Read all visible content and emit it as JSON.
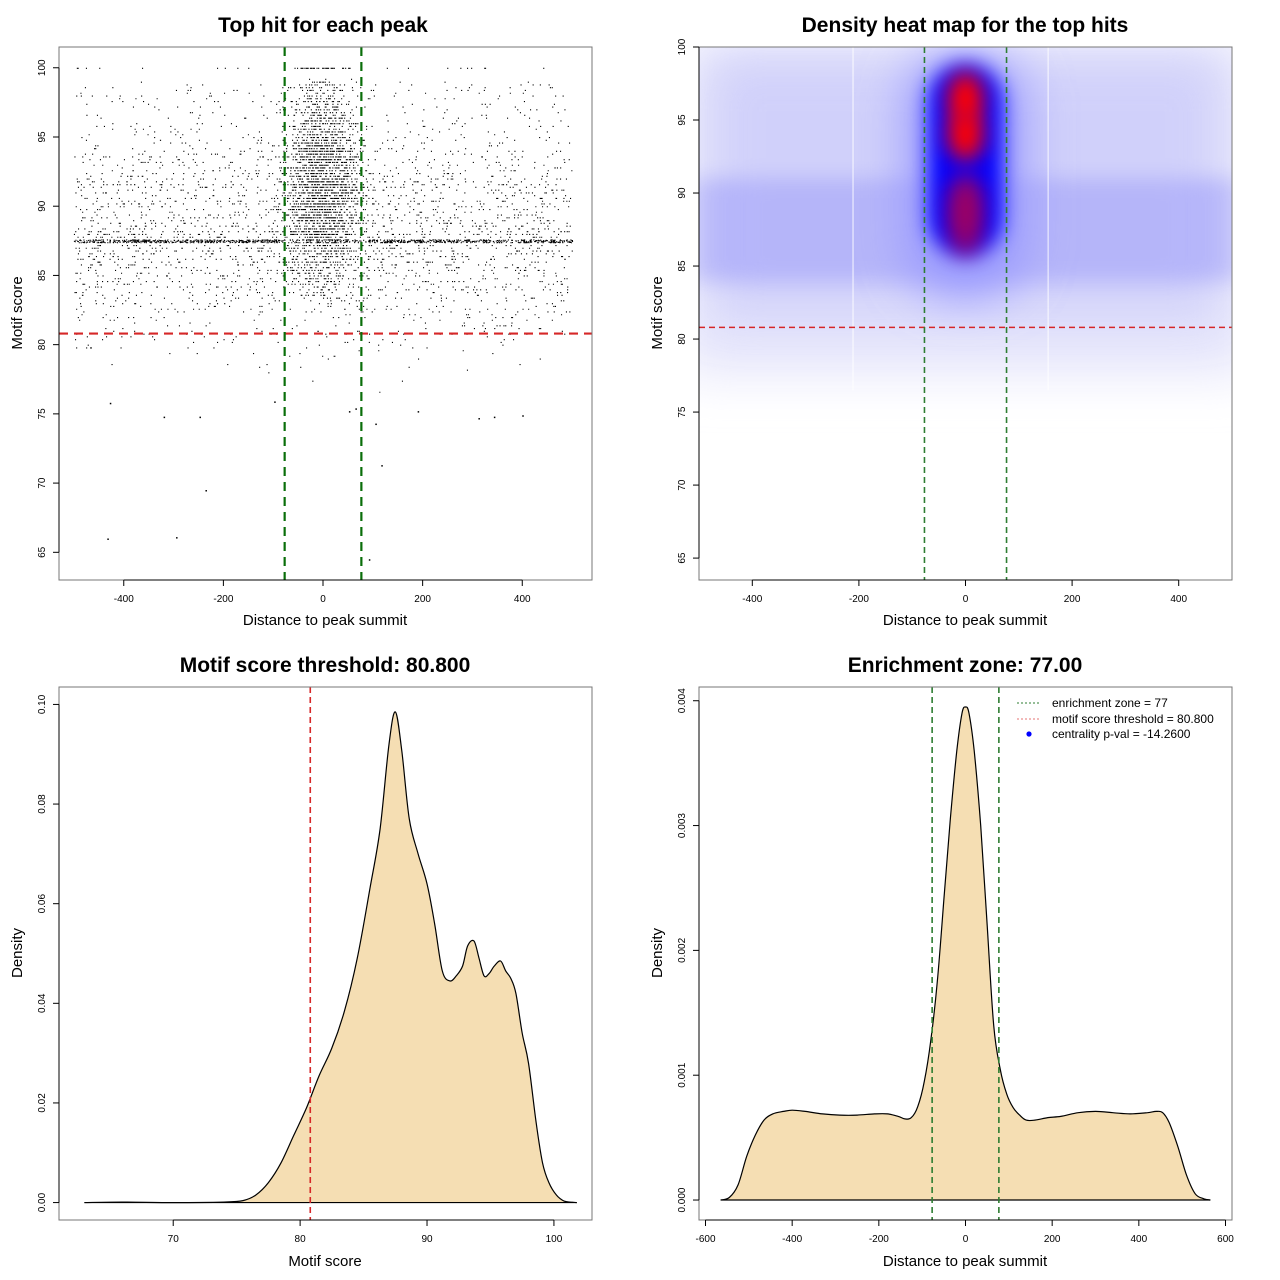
{
  "colors": {
    "points": "#000000",
    "threshold_line": "#d62728",
    "zone_line": "#0a6e0a",
    "zone_line_light": "#2e7d32",
    "density_fill": "#f5deb3",
    "density_stroke": "#000000",
    "heat_low": "#ffffff",
    "heat_mid": "#0000ff",
    "heat_high": "#ff0000",
    "legend_dot": "#0000ff",
    "frame": "#777777"
  },
  "chart_data": [
    {
      "id": "scatter",
      "type": "scatter",
      "title": "Top hit for each peak",
      "xlabel": "Distance to peak summit",
      "ylabel": "Motif score",
      "xlim": [
        -530,
        540
      ],
      "ylim": [
        63,
        101.5
      ],
      "xticks": [
        -400,
        -200,
        0,
        200,
        400
      ],
      "xtick_labels": [
        "-400",
        "-200",
        "0",
        "200",
        "400"
      ],
      "yticks": [
        65,
        70,
        75,
        80,
        85,
        90,
        95,
        100
      ],
      "ytick_labels": [
        "65",
        "70",
        "75",
        "80",
        "85",
        "90",
        "95",
        "100"
      ],
      "x_range_of_points": [
        -500,
        500
      ],
      "point_density_description": "dense uniform band of points from -500 to 500 between scores ~80 and 100, strong central enrichment near 0, horizontal line of points at ~87.5",
      "sparse_outliers": [
        {
          "x": -433,
          "y": 66.0
        },
        {
          "x": -295,
          "y": 66.1
        },
        {
          "x": -236,
          "y": 69.5
        },
        {
          "x": 92,
          "y": 64.5
        },
        {
          "x": 117,
          "y": 71.3
        },
        {
          "x": 105,
          "y": 74.3
        },
        {
          "x": -428,
          "y": 75.8
        },
        {
          "x": -320,
          "y": 74.8
        },
        {
          "x": -248,
          "y": 74.8
        },
        {
          "x": 312,
          "y": 74.7
        },
        {
          "x": 343,
          "y": 74.8
        },
        {
          "x": 400,
          "y": 74.9
        },
        {
          "x": 190,
          "y": 75.2
        },
        {
          "x": 52,
          "y": 75.2
        },
        {
          "x": 65,
          "y": 75.4
        },
        {
          "x": -98,
          "y": 75.9
        }
      ],
      "hlines": [
        {
          "y": 80.8,
          "label": "motif score threshold",
          "color_key": "threshold_line"
        }
      ],
      "vlines": [
        {
          "x": -77,
          "color_key": "zone_line"
        },
        {
          "x": 77,
          "color_key": "zone_line"
        }
      ],
      "grid": false
    },
    {
      "id": "heatmap",
      "type": "heatmap",
      "title": "Density heat map for the top hits",
      "xlabel": "Distance to peak summit",
      "ylabel": "Motif score",
      "xlim": [
        -500,
        500
      ],
      "ylim": [
        63.5,
        100
      ],
      "xticks": [
        -400,
        -200,
        0,
        200,
        400
      ],
      "xtick_labels": [
        "-400",
        "-200",
        "0",
        "200",
        "400"
      ],
      "yticks": [
        65,
        70,
        75,
        80,
        85,
        90,
        95,
        100
      ],
      "ytick_labels": [
        "65",
        "70",
        "75",
        "80",
        "85",
        "90",
        "95",
        "100"
      ],
      "colormap": [
        "white",
        "blue",
        "red"
      ],
      "hotspots": [
        {
          "x": 0,
          "y": 96.5,
          "intensity": 1.0
        },
        {
          "x": 0,
          "y": 94.0,
          "intensity": 0.95
        },
        {
          "x": 0,
          "y": 89.5,
          "intensity": 0.75
        },
        {
          "x": 0,
          "y": 87.5,
          "intensity": 0.7
        }
      ],
      "band": {
        "y": 87.5,
        "x_range": [
          -500,
          500
        ],
        "intensity": 0.35
      },
      "hlines": [
        {
          "y": 80.8,
          "color_key": "threshold_line"
        }
      ],
      "vlines": [
        {
          "x": -77,
          "color_key": "zone_line_light"
        },
        {
          "x": 77,
          "color_key": "zone_line_light"
        }
      ],
      "grid": false
    },
    {
      "id": "score_density",
      "type": "area",
      "title": "Motif score threshold: 80.800",
      "xlabel": "Motif score",
      "ylabel": "Density",
      "xlim": [
        61,
        103
      ],
      "ylim": [
        -0.0035,
        0.1035
      ],
      "xticks": [
        70,
        80,
        90,
        100
      ],
      "xtick_labels": [
        "70",
        "80",
        "90",
        "100"
      ],
      "yticks": [
        0.0,
        0.02,
        0.04,
        0.06,
        0.08,
        0.1
      ],
      "ytick_labels": [
        "0.00",
        "0.02",
        "0.04",
        "0.06",
        "0.08",
        "0.10"
      ],
      "x": [
        63,
        66,
        70,
        74,
        75.5,
        76.5,
        77.5,
        78.5,
        79.5,
        80.5,
        81.5,
        82.5,
        83.5,
        84.5,
        85.5,
        86.3,
        87.0,
        87.5,
        88.0,
        88.6,
        89.3,
        90.0,
        90.6,
        91.2,
        91.8,
        92.3,
        92.8,
        93.2,
        93.7,
        94.1,
        94.5,
        94.9,
        95.3,
        95.8,
        96.2,
        96.6,
        97.0,
        97.5,
        98.0,
        98.6,
        99.1,
        99.6,
        100.2,
        100.8,
        101.3,
        101.8
      ],
      "values": [
        0.0,
        0.0001,
        0.0,
        0.0001,
        0.0004,
        0.0015,
        0.004,
        0.008,
        0.0135,
        0.019,
        0.0255,
        0.031,
        0.0385,
        0.049,
        0.063,
        0.075,
        0.092,
        0.0985,
        0.091,
        0.077,
        0.07,
        0.064,
        0.056,
        0.0465,
        0.0445,
        0.0455,
        0.0475,
        0.0515,
        0.0525,
        0.049,
        0.0455,
        0.046,
        0.0475,
        0.0485,
        0.0465,
        0.045,
        0.042,
        0.034,
        0.028,
        0.016,
        0.008,
        0.004,
        0.0015,
        0.0003,
        0.0001,
        0.0
      ],
      "vlines": [
        {
          "x": 80.8,
          "color_key": "threshold_line"
        }
      ],
      "grid": false
    },
    {
      "id": "distance_density",
      "type": "area",
      "title": "Enrichment zone: 77.00",
      "xlabel": "Distance to peak summit",
      "ylabel": "Density",
      "xlim": [
        -615,
        615
      ],
      "ylim": [
        -0.00016,
        0.00411
      ],
      "xticks": [
        -600,
        -400,
        -200,
        0,
        200,
        400,
        600
      ],
      "xtick_labels": [
        "-600",
        "-400",
        "-200",
        "0",
        "200",
        "400",
        "600"
      ],
      "yticks": [
        0.0,
        0.001,
        0.002,
        0.003,
        0.004
      ],
      "ytick_labels": [
        "0.000",
        "0.001",
        "0.002",
        "0.003",
        "0.004"
      ],
      "x": [
        -565,
        -545,
        -525,
        -505,
        -485,
        -465,
        -445,
        -420,
        -400,
        -370,
        -330,
        -290,
        -250,
        -210,
        -180,
        -155,
        -140,
        -125,
        -110,
        -95,
        -80,
        -65,
        -50,
        -35,
        -20,
        -8,
        0,
        8,
        20,
        35,
        50,
        65,
        80,
        95,
        110,
        125,
        140,
        160,
        190,
        220,
        260,
        300,
        340,
        380,
        420,
        440,
        455,
        470,
        490,
        510,
        530,
        550,
        565
      ],
      "values": [
        0.0,
        2e-05,
        0.00012,
        0.00035,
        0.00052,
        0.00064,
        0.00069,
        0.00071,
        0.00072,
        0.00071,
        0.00069,
        0.00068,
        0.00068,
        0.00069,
        0.00069,
        0.00067,
        0.00065,
        0.00066,
        0.00075,
        0.00095,
        0.00128,
        0.00175,
        0.0024,
        0.00305,
        0.0036,
        0.0039,
        0.00395,
        0.0039,
        0.0036,
        0.003,
        0.0022,
        0.0014,
        0.00105,
        0.00085,
        0.00074,
        0.00068,
        0.00064,
        0.00064,
        0.00066,
        0.00067,
        0.0007,
        0.00071,
        0.0007,
        0.00069,
        0.0007,
        0.00071,
        0.0007,
        0.00062,
        0.00043,
        0.0002,
        5e-05,
        1e-05,
        0.0
      ],
      "vlines": [
        {
          "x": -77,
          "color_key": "zone_line_light"
        },
        {
          "x": 77,
          "color_key": "zone_line_light"
        }
      ],
      "legend": {
        "position": "top-right",
        "entries": [
          {
            "label": "enrichment zone = 77",
            "style": "dotted-line",
            "color_key": "zone_line_light"
          },
          {
            "label": "motif score threshold = 80.800",
            "style": "dotted-line",
            "color_key": "threshold_line"
          },
          {
            "label": "centrality p-val = -14.2600",
            "style": "dot",
            "color_key": "legend_dot"
          }
        ]
      },
      "grid": false
    }
  ]
}
